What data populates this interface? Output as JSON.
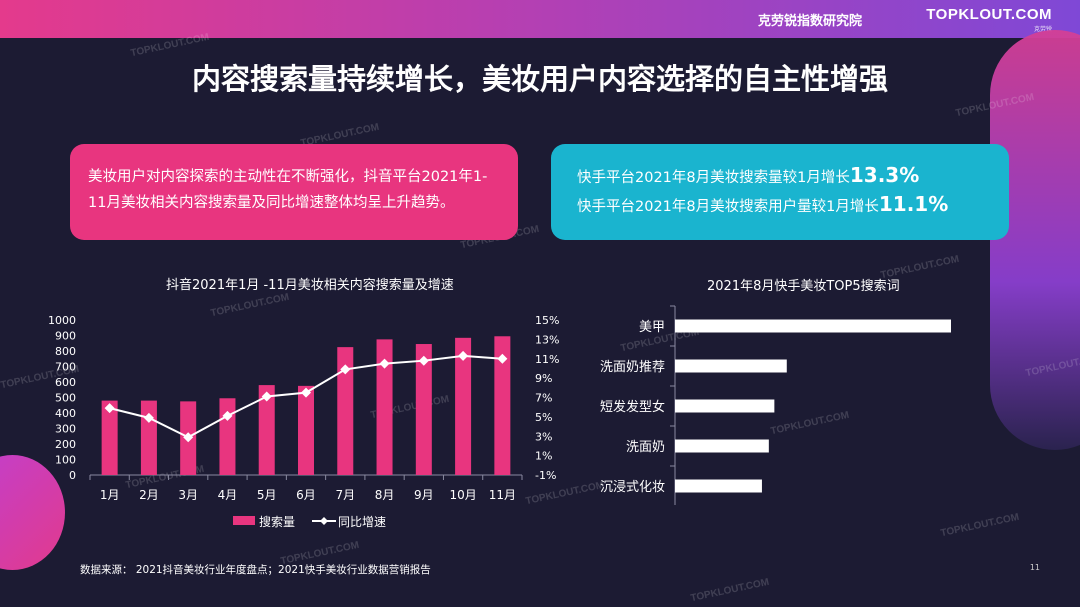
{
  "header": {
    "org": "克劳锐指数研究院",
    "logo": "TOPKLOUT.COM",
    "logo_sub": "克劳锐"
  },
  "title": "内容搜索量持续增长，美妆用户内容选择的自主性增强",
  "box_left": {
    "text": "美妆用户对内容探索的主动性在不断强化，抖音平台2021年1-11月美妆相关内容搜索量及同比增速整体均呈上升趋势。"
  },
  "box_right": {
    "line1_text": "快手平台2021年8月美妆搜索量较1月增长",
    "line1_value": "13.3%",
    "line2_text": "快手平台2021年8月美妆搜索用户量较1月增长",
    "line2_value": "11.1%"
  },
  "watermark": "TOPKLOUT.COM",
  "colors": {
    "bar": "#e8357f",
    "line": "#ffffff",
    "pink_box": "#e8357f",
    "cyan_box": "#1ab4cf"
  },
  "chart_data": [
    {
      "type": "bar+line",
      "title": "抖音2021年1月 -11月美妆相关内容搜索量及增速",
      "categories": [
        "1月",
        "2月",
        "3月",
        "4月",
        "5月",
        "6月",
        "7月",
        "8月",
        "9月",
        "10月",
        "11月"
      ],
      "series": [
        {
          "name": "搜索量",
          "type": "bar",
          "axis": "left",
          "values": [
            480,
            480,
            475,
            495,
            580,
            575,
            825,
            875,
            845,
            885,
            895
          ]
        },
        {
          "name": "同比增速",
          "type": "line",
          "axis": "right",
          "values": [
            5.9,
            4.9,
            2.9,
            5.1,
            7.1,
            7.5,
            9.9,
            10.5,
            10.8,
            11.3,
            11.0
          ]
        }
      ],
      "y_left": {
        "min": 0,
        "max": 1000,
        "ticks": [
          "0",
          "100",
          "200",
          "300",
          "400",
          "500",
          "600",
          "700",
          "800",
          "900",
          "1000"
        ]
      },
      "y_right": {
        "min": -1,
        "max": 15,
        "ticks": [
          "-1%",
          "1%",
          "3%",
          "5%",
          "7%",
          "9%",
          "11%",
          "13%",
          "15%"
        ]
      },
      "legend": "bottom"
    },
    {
      "type": "bar",
      "orientation": "horizontal",
      "title": "2021年8月快手美妆TOP5搜索词",
      "categories": [
        "美甲",
        "洗面奶推荐",
        "短发发型女",
        "洗面奶",
        "沉浸式化妆"
      ],
      "values": [
        100,
        40.5,
        36,
        34,
        31.5
      ]
    }
  ],
  "footer": {
    "source": "数据来源： 2021抖音美妆行业年度盘点；2021快手美妆行业数据营销报告",
    "page": "11"
  }
}
